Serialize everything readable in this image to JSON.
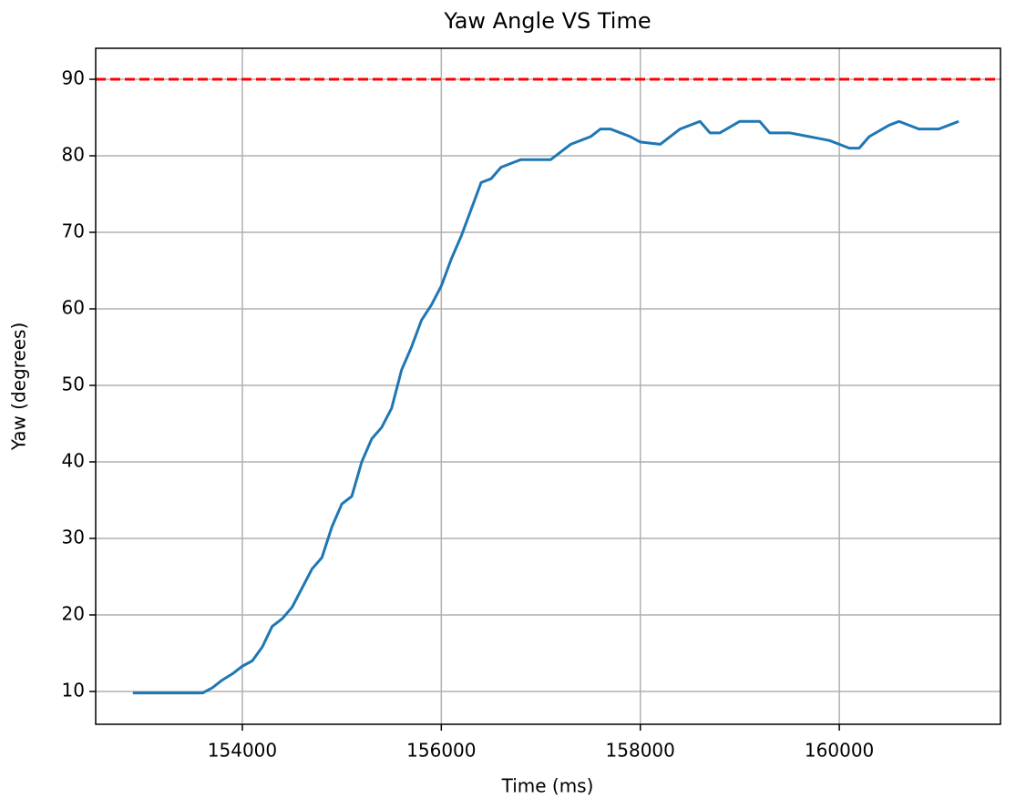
{
  "chart_data": {
    "type": "line",
    "title": "Yaw Angle VS Time",
    "x_label": "Time (ms)",
    "y_label": "Yaw (degrees)",
    "x": [
      152900,
      153600,
      153700,
      153800,
      153900,
      154000,
      154100,
      154200,
      154300,
      154400,
      154500,
      154600,
      154700,
      154800,
      154900,
      155000,
      155100,
      155200,
      155300,
      155400,
      155500,
      155600,
      155700,
      155800,
      155900,
      156000,
      156100,
      156200,
      156300,
      156400,
      156500,
      156600,
      156700,
      156800,
      156900,
      157000,
      157100,
      157200,
      157300,
      157400,
      157500,
      157600,
      157700,
      157800,
      157900,
      158000,
      158200,
      158400,
      158600,
      158700,
      158800,
      159000,
      159200,
      159300,
      159500,
      159700,
      159900,
      160000,
      160100,
      160200,
      160300,
      160500,
      160600,
      160800,
      161000,
      161100,
      161200
    ],
    "series": [
      {
        "color": "#1f77b4",
        "values": [
          9.8,
          9.8,
          10.5,
          11.5,
          12.3,
          13.3,
          14,
          15.8,
          18.5,
          19.5,
          21,
          23.5,
          26,
          27.5,
          31.5,
          34.5,
          35.5,
          40,
          43,
          44.5,
          47,
          52,
          55,
          58.5,
          60.5,
          63,
          66.5,
          69.5,
          73,
          76.5,
          77,
          78.5,
          79,
          79.5,
          79.5,
          79.5,
          79.5,
          80.5,
          81.5,
          82,
          82.5,
          83.5,
          83.5,
          83,
          82.5,
          81.8,
          81.5,
          83.5,
          84.5,
          83,
          83,
          84.5,
          84.5,
          83,
          83,
          82.5,
          82,
          81.5,
          81,
          81,
          82.5,
          84,
          84.5,
          83.5,
          83.5,
          84,
          84.5
        ]
      }
    ],
    "ref_line": {
      "value": 90,
      "color": "#ff0000",
      "style": "dashed"
    },
    "xlim": [
      152526,
      161620
    ],
    "xticks": [
      154000,
      156000,
      158000,
      160000
    ],
    "ylim": [
      5.71,
      94.05
    ],
    "yticks": [
      10,
      20,
      30,
      40,
      50,
      60,
      70,
      80,
      90
    ],
    "grid": true
  }
}
